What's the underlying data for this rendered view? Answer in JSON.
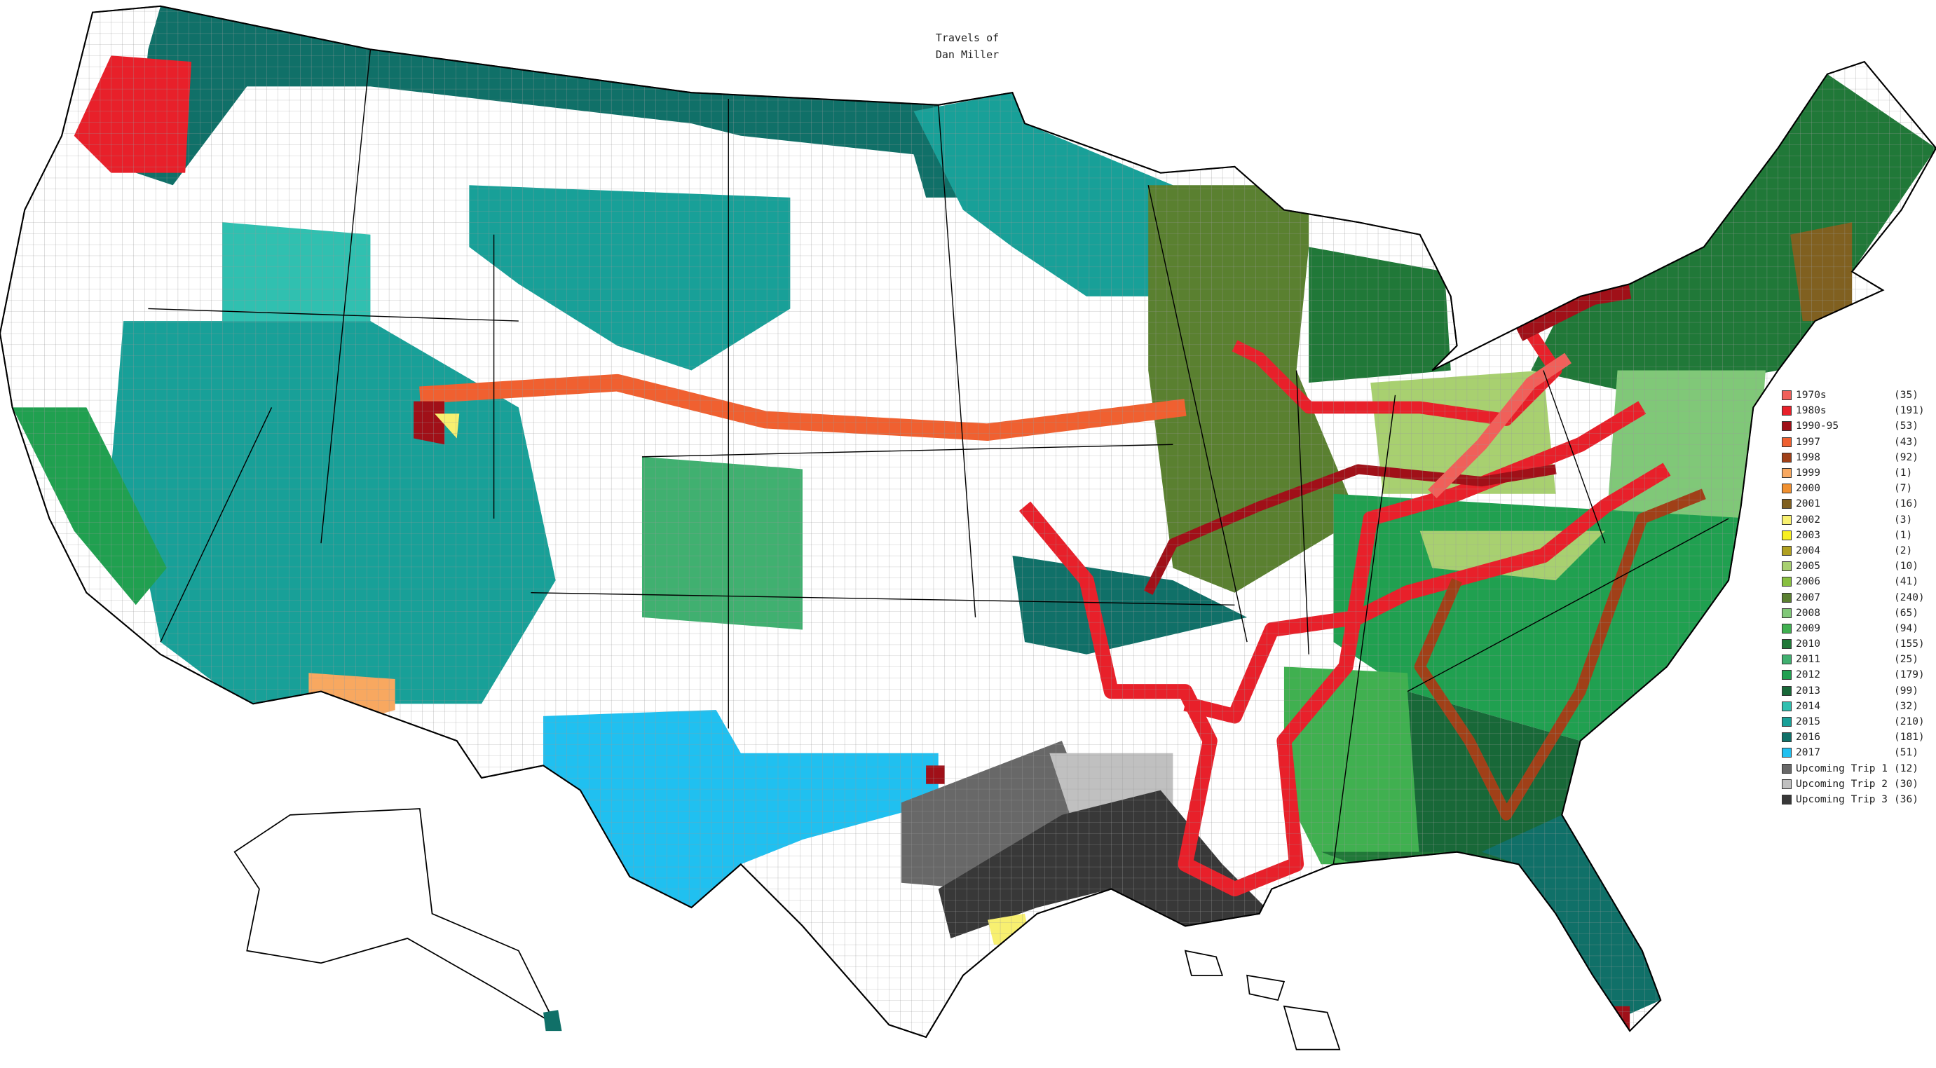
{
  "title": {
    "line1": "Travels of",
    "line2": "Dan Miller"
  },
  "legend": [
    {
      "label": "1970s",
      "count": "(35)",
      "color": "#f0605a"
    },
    {
      "label": "1980s",
      "count": "(191)",
      "color": "#e8202a"
    },
    {
      "label": "1990-95",
      "count": "(53)",
      "color": "#a01018"
    },
    {
      "label": "1997",
      "count": "(43)",
      "color": "#f06030"
    },
    {
      "label": "1998",
      "count": "(92)",
      "color": "#a04018"
    },
    {
      "label": "1999",
      "count": "(1)",
      "color": "#f8a860"
    },
    {
      "label": "2000",
      "count": "(7)",
      "color": "#f09030"
    },
    {
      "label": "2001",
      "count": "(16)",
      "color": "#806020"
    },
    {
      "label": "2002",
      "count": "(3)",
      "color": "#f8f070"
    },
    {
      "label": "2003",
      "count": "(1)",
      "color": "#f8f020"
    },
    {
      "label": "2004",
      "count": "(2)",
      "color": "#b0a020"
    },
    {
      "label": "2005",
      "count": "(10)",
      "color": "#a8d070"
    },
    {
      "label": "2006",
      "count": "(41)",
      "color": "#88c040"
    },
    {
      "label": "2007",
      "count": "(240)",
      "color": "#5a8030"
    },
    {
      "label": "2008",
      "count": "(65)",
      "color": "#80c878"
    },
    {
      "label": "2009",
      "count": "(94)",
      "color": "#40b050"
    },
    {
      "label": "2010",
      "count": "(155)",
      "color": "#207838"
    },
    {
      "label": "2011",
      "count": "(25)",
      "color": "#40b070"
    },
    {
      "label": "2012",
      "count": "(179)",
      "color": "#20a050"
    },
    {
      "label": "2013",
      "count": "(99)",
      "color": "#186838"
    },
    {
      "label": "2014",
      "count": "(32)",
      "color": "#30c0b0"
    },
    {
      "label": "2015",
      "count": "(210)",
      "color": "#18a098"
    },
    {
      "label": "2016",
      "count": "(181)",
      "color": "#107068"
    },
    {
      "label": "2017",
      "count": "(51)",
      "color": "#20c0f0"
    },
    {
      "label": "Upcoming Trip 1",
      "count": "(12)",
      "color": "#686868"
    },
    {
      "label": "Upcoming Trip 2",
      "count": "(30)",
      "color": "#c0c0c0"
    },
    {
      "label": "Upcoming Trip 3",
      "count": "(36)",
      "color": "#383838"
    }
  ]
}
